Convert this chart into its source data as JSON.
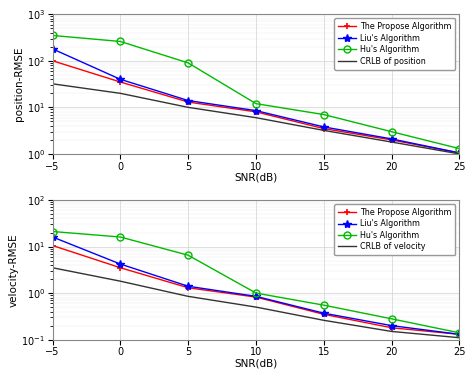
{
  "snr": [
    -5,
    0,
    5,
    10,
    15,
    20,
    25
  ],
  "pos_proposed": [
    100,
    35,
    13,
    8,
    3.5,
    2.0,
    1.05
  ],
  "pos_liu": [
    180,
    40,
    14,
    8.5,
    3.8,
    2.1,
    1.05
  ],
  "pos_hu": [
    350,
    260,
    90,
    12,
    7,
    3.0,
    1.3
  ],
  "pos_crlb": [
    32,
    20,
    10,
    6,
    3.2,
    1.8,
    1.0
  ],
  "vel_proposed": [
    10.5,
    3.5,
    1.3,
    0.82,
    0.35,
    0.18,
    0.13
  ],
  "vel_liu": [
    16,
    4.2,
    1.4,
    0.85,
    0.37,
    0.2,
    0.13
  ],
  "vel_hu": [
    21,
    16,
    6.5,
    1.0,
    0.55,
    0.28,
    0.14
  ],
  "vel_crlb": [
    3.5,
    1.8,
    0.85,
    0.5,
    0.26,
    0.15,
    0.11
  ],
  "legend_pos": [
    "The Propose Algorithm",
    "Liu's Algorithm",
    "Hu's Algorithm",
    "CRLB of position"
  ],
  "legend_vel": [
    "The Propose Algorithm",
    "Liu's Algorithm",
    "Hu's Algorithm",
    "CRLB of velocity"
  ],
  "color_proposed": "#FF0000",
  "color_liu": "#0000FF",
  "color_hu": "#00BB00",
  "color_crlb": "#333333",
  "xlabel": "SNR(dB)",
  "ylabel_top": "position-RMSE",
  "ylabel_bot": "velocity-RMSE",
  "bg_color": "#FFFFFF",
  "grid_color": "#D0D0D0"
}
